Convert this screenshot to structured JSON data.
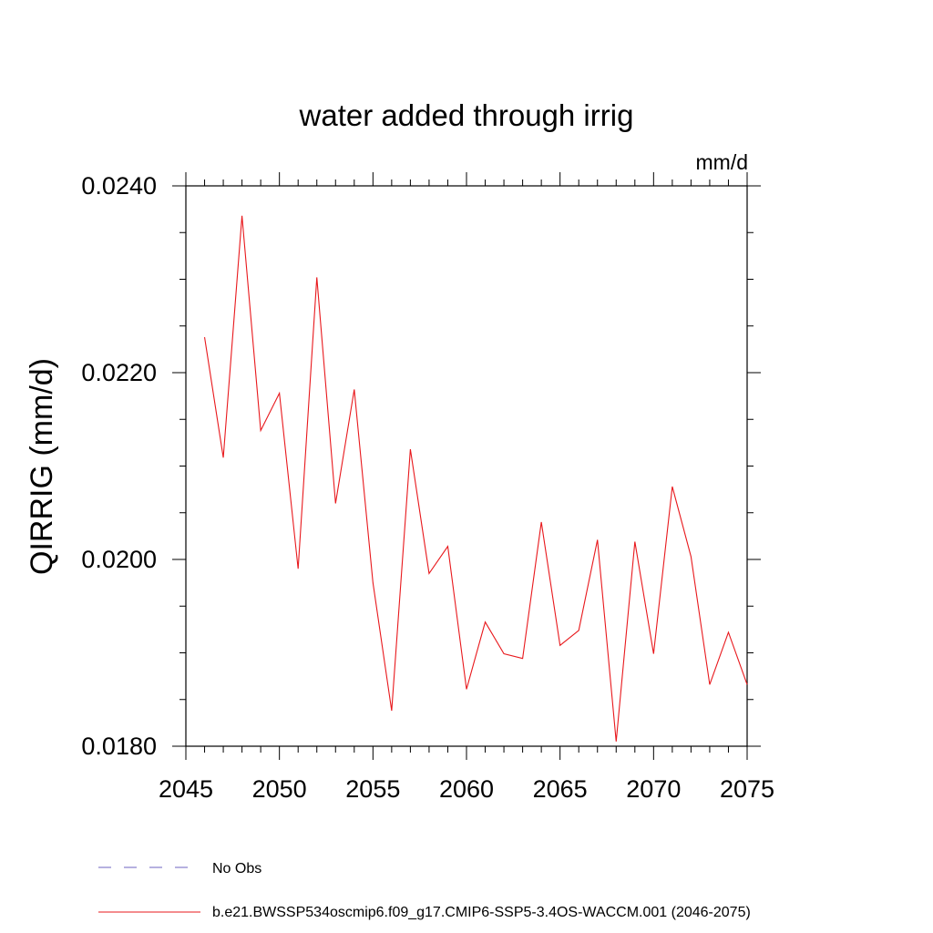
{
  "chart_data": {
    "type": "line",
    "title": "water added through irrig",
    "units": "mm/d",
    "xlabel": "",
    "ylabel": "QIRRIG  (mm/d)",
    "xlim": [
      2045,
      2075
    ],
    "ylim": [
      0.018,
      0.024
    ],
    "xticks": [
      2045,
      2050,
      2055,
      2060,
      2065,
      2070,
      2075
    ],
    "xtick_labels": [
      "2045",
      "2050",
      "2055",
      "2060",
      "2065",
      "2070",
      "2075"
    ],
    "yticks": [
      0.018,
      0.02,
      0.022,
      0.024
    ],
    "ytick_labels": [
      "0.0180",
      "0.0200",
      "0.0220",
      "0.0240"
    ],
    "y_minor_step": 0.0005,
    "x_minor_step": 1,
    "grid": false,
    "legend_position": "bottom",
    "legend": [
      {
        "label": "No Obs",
        "style": "dashed",
        "color": "#6e63c0"
      },
      {
        "label": "b.e21.BWSSP534oscmip6.f09_g17.CMIP6-SSP5-3.4OS-WACCM.001 (2046-2075)",
        "style": "solid",
        "color": "#e8181c"
      }
    ],
    "series": [
      {
        "name": "b.e21.BWSSP534oscmip6.f09_g17.CMIP6-SSP5-3.4OS-WACCM.001 (2046-2075)",
        "color": "#e8181c",
        "x": [
          2046,
          2047,
          2048,
          2049,
          2050,
          2051,
          2052,
          2053,
          2054,
          2055,
          2056,
          2057,
          2058,
          2059,
          2060,
          2061,
          2062,
          2063,
          2064,
          2065,
          2066,
          2067,
          2068,
          2069,
          2070,
          2071,
          2072,
          2073,
          2074,
          2075
        ],
        "y": [
          0.02238,
          0.02109,
          0.02368,
          0.02138,
          0.02178,
          0.0199,
          0.02302,
          0.0206,
          0.02182,
          0.01975,
          0.01838,
          0.02118,
          0.01985,
          0.02014,
          0.01861,
          0.01933,
          0.01899,
          0.01894,
          0.0204,
          0.01908,
          0.01924,
          0.02021,
          0.01805,
          0.02019,
          0.01899,
          0.02078,
          0.02003,
          0.01866,
          0.01922,
          0.01866
        ]
      }
    ]
  }
}
